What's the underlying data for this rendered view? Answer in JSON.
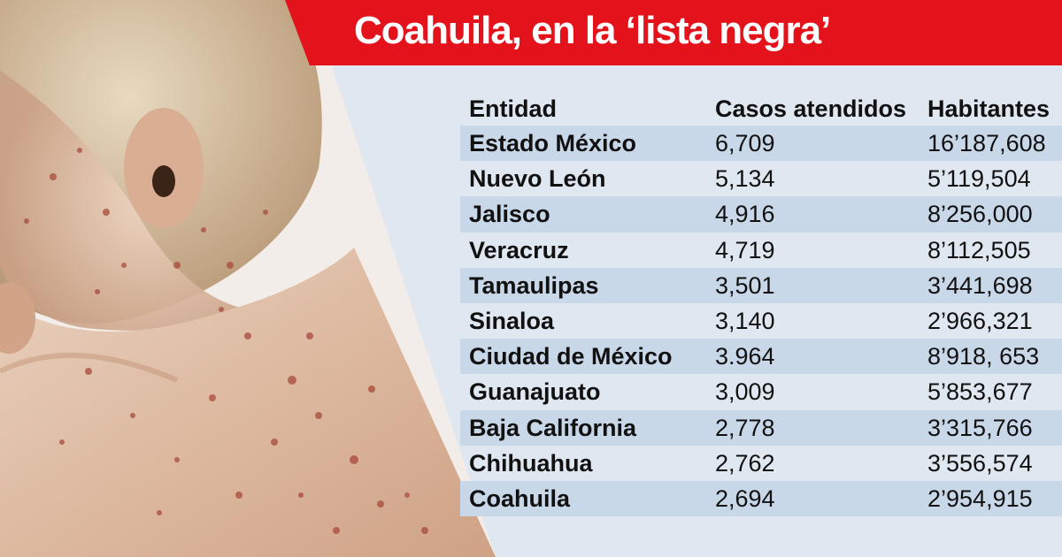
{
  "header": {
    "title": "Coahuila, en la ‘lista negra’"
  },
  "table": {
    "columns": [
      "Entidad",
      "Casos atendidos",
      "Habitantes"
    ],
    "rows": [
      [
        "Estado México",
        "6,709",
        "16’187,608"
      ],
      [
        "Nuevo León",
        "5,134",
        "5’119,504"
      ],
      [
        "Jalisco",
        "4,916",
        "8’256,000"
      ],
      [
        "Veracruz",
        "4,719",
        "8’112,505"
      ],
      [
        "Tamaulipas",
        "3,501",
        "3’441,698"
      ],
      [
        "Sinaloa",
        "3,140",
        "2’966,321"
      ],
      [
        "Ciudad de México",
        "3.964",
        "8’918, 653"
      ],
      [
        "Guanajuato",
        "3,009",
        "5’853,677"
      ],
      [
        "Baja California",
        "2,778",
        "3’315,766"
      ],
      [
        "Chihuahua",
        "2,762",
        "3’556,574"
      ],
      [
        "Coahuila",
        "2,694",
        "2’954,915"
      ]
    ]
  },
  "colors": {
    "accent": "#e3121b",
    "band": "#c9d8e9",
    "background": "#dfe7f0"
  },
  "photo": {
    "subject": "child-with-rash-photo"
  }
}
